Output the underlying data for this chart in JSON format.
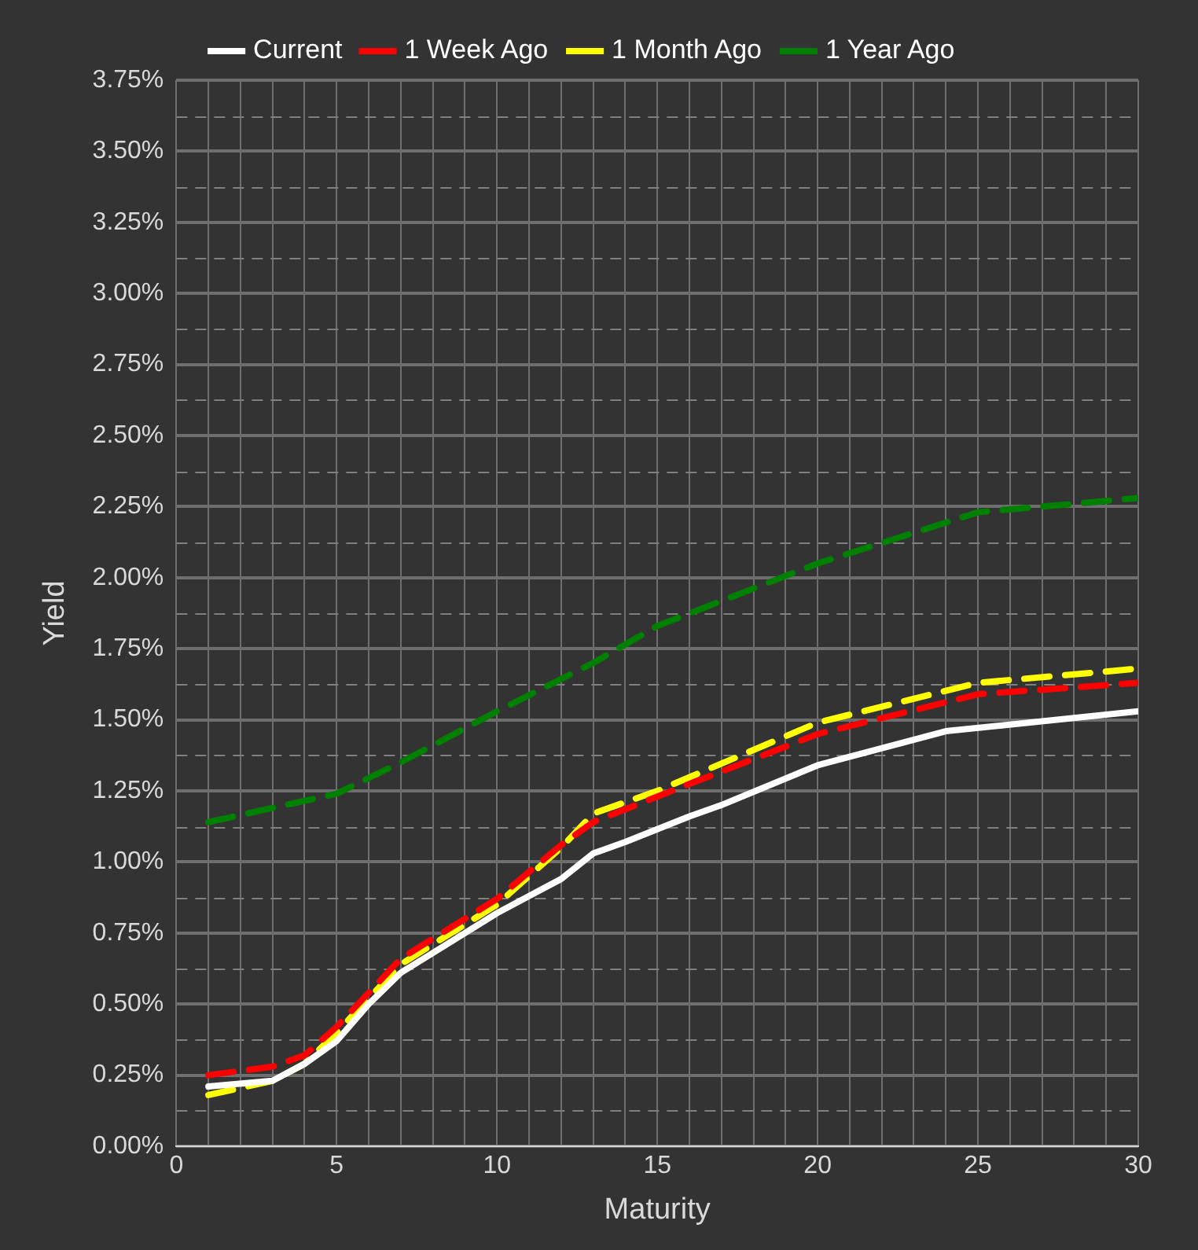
{
  "chart_data": {
    "type": "line",
    "xlabel": "Maturity",
    "ylabel": "Yield",
    "series": [
      {
        "name": "Current",
        "color": "#ffffff",
        "line_style": "solid",
        "x": [
          1,
          3,
          4,
          5,
          6,
          7,
          8,
          9,
          10,
          11,
          12,
          13,
          14,
          16,
          17,
          20,
          24,
          30
        ],
        "values": [
          0.21,
          0.23,
          0.29,
          0.37,
          0.5,
          0.61,
          0.68,
          0.75,
          0.82,
          0.88,
          0.94,
          1.03,
          1.07,
          1.16,
          1.2,
          1.34,
          1.46,
          1.53
        ]
      },
      {
        "name": "1 Week Ago",
        "color": "#ff0000",
        "line_style": "dashed",
        "x": [
          1,
          3,
          4,
          5,
          7,
          10,
          12,
          13,
          15,
          20,
          25,
          30
        ],
        "values": [
          0.25,
          0.28,
          0.32,
          0.42,
          0.66,
          0.87,
          1.06,
          1.14,
          1.23,
          1.45,
          1.59,
          1.63
        ]
      },
      {
        "name": "1 Month Ago",
        "color": "#ffff00",
        "line_style": "dashed",
        "x": [
          1,
          3,
          4,
          5,
          7,
          10,
          12,
          13,
          15,
          20,
          25,
          30
        ],
        "values": [
          0.18,
          0.23,
          0.29,
          0.4,
          0.64,
          0.85,
          1.05,
          1.17,
          1.25,
          1.49,
          1.63,
          1.68
        ]
      },
      {
        "name": "1 Year Ago",
        "color": "#008000",
        "line_style": "dashed",
        "x": [
          1,
          3,
          5,
          7,
          10,
          13,
          15,
          20,
          25,
          30
        ],
        "values": [
          1.14,
          1.19,
          1.24,
          1.35,
          1.53,
          1.7,
          1.83,
          2.05,
          2.23,
          2.28
        ]
      }
    ],
    "xlim": [
      0,
      30
    ],
    "xticks": [
      0,
      {
        "value": 1,
        "label": null
      },
      {
        "value": 2,
        "label": null
      },
      {
        "value": 3,
        "label": null
      },
      {
        "value": 4,
        "label": null
      },
      5,
      {
        "value": 6,
        "label": null
      },
      {
        "value": 7,
        "label": null
      },
      {
        "value": 8,
        "label": null
      },
      {
        "value": 9,
        "label": null
      },
      10,
      {
        "value": 11,
        "label": null
      },
      {
        "value": 12,
        "label": null
      },
      {
        "value": 13,
        "label": null
      },
      {
        "value": 14,
        "label": null
      },
      15,
      {
        "value": 16,
        "label": null
      },
      {
        "value": 17,
        "label": null
      },
      {
        "value": 18,
        "label": null
      },
      {
        "value": 19,
        "label": null
      },
      20,
      {
        "value": 21,
        "label": null
      },
      {
        "value": 22,
        "label": null
      },
      {
        "value": 23,
        "label": null
      },
      {
        "value": 24,
        "label": null
      },
      25,
      {
        "value": 26,
        "label": null
      },
      {
        "value": 27,
        "label": null
      },
      {
        "value": 28,
        "label": null
      },
      {
        "value": 29,
        "label": null
      },
      30
    ],
    "ylim": [
      0,
      3.75
    ],
    "yticks": [
      {
        "value": 0,
        "label": "0.00%"
      },
      {
        "value": 0.125,
        "label": null
      },
      {
        "value": 0.25,
        "label": "0.25%"
      },
      {
        "value": 0.375,
        "label": null
      },
      {
        "value": 0.5,
        "label": "0.50%"
      },
      {
        "value": 0.625,
        "label": null
      },
      {
        "value": 0.75,
        "label": "0.75%"
      },
      {
        "value": 0.875,
        "label": null
      },
      {
        "value": 1,
        "label": "1.00%"
      },
      {
        "value": 1.125,
        "label": null
      },
      {
        "value": 1.25,
        "label": "1.25%"
      },
      {
        "value": 1.375,
        "label": null
      },
      {
        "value": 1.5,
        "label": "1.50%"
      },
      {
        "value": 1.625,
        "label": null
      },
      {
        "value": 1.75,
        "label": "1.75%"
      },
      {
        "value": 1.875,
        "label": null
      },
      {
        "value": 2,
        "label": "2.00%"
      },
      {
        "value": 2.125,
        "label": null
      },
      {
        "value": 2.25,
        "label": "2.25%"
      },
      {
        "value": 2.375,
        "label": null
      },
      {
        "value": 2.5,
        "label": "2.50%"
      },
      {
        "value": 2.625,
        "label": null
      },
      {
        "value": 2.75,
        "label": "2.75%"
      },
      {
        "value": 2.875,
        "label": null
      },
      {
        "value": 3,
        "label": "3.00%"
      },
      {
        "value": 3.125,
        "label": null
      },
      {
        "value": 3.25,
        "label": "3.25%"
      },
      {
        "value": 3.375,
        "label": null
      },
      {
        "value": 3.5,
        "label": "3.50%"
      },
      {
        "value": 3.625,
        "label": null
      },
      {
        "value": 3.75,
        "label": "3.75%"
      }
    ],
    "grid": true,
    "legend": "top",
    "marker": "none"
  }
}
